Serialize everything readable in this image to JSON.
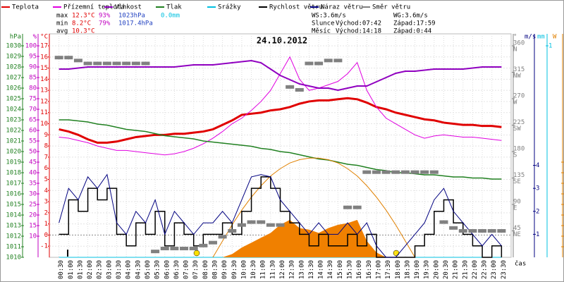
{
  "chart_data": {
    "type": "line",
    "title": "24.10.2012",
    "xlabel": "čas",
    "categories": [
      "00:30",
      "01:00",
      "01:30",
      "02:00",
      "02:30",
      "03:00",
      "03:30",
      "04:00",
      "04:30",
      "05:00",
      "05:30",
      "06:00",
      "06:30",
      "07:00",
      "07:30",
      "08:00",
      "08:30",
      "09:00",
      "09:30",
      "10:00",
      "10:30",
      "11:00",
      "11:30",
      "12:00",
      "12:30",
      "13:00",
      "13:30",
      "14:00",
      "14:30",
      "15:00",
      "15:30",
      "16:00",
      "16:30",
      "17:00",
      "17:30",
      "18:00",
      "18:30",
      "19:00",
      "19:30",
      "20:00",
      "20:30",
      "21:00",
      "21:30",
      "22:00",
      "22:30",
      "23:00",
      "23:30"
    ],
    "axes": {
      "pressure": {
        "unit": "hPa",
        "color": "#208020",
        "side": "left",
        "pos": 30,
        "lim": [
          1010,
          1030
        ],
        "ticks": [
          1010,
          1011,
          1012,
          1013,
          1014,
          1015,
          1016,
          1017,
          1018,
          1019,
          1020,
          1021,
          1022,
          1023,
          1024,
          1025,
          1026,
          1027,
          1028,
          1029,
          1030
        ]
      },
      "humidity": {
        "unit": "%",
        "color": "#c000c0",
        "side": "left",
        "pos": 52,
        "lim": [
          0,
          100
        ],
        "ticks": [
          10,
          15,
          20,
          25,
          30,
          35,
          40,
          45,
          50,
          55,
          60,
          65,
          70,
          75,
          80,
          85,
          90,
          95,
          100
        ]
      },
      "temp": {
        "unit": "°C",
        "color": "#e00000",
        "side": "left",
        "pos": 68,
        "lim": [
          -2,
          17
        ],
        "ticks": [
          -1,
          0,
          1,
          2,
          3,
          4,
          5,
          6,
          7,
          8,
          9,
          10,
          11,
          12,
          13,
          14,
          15,
          16,
          17
        ],
        "grid": true
      },
      "direction": {
        "unit": "°",
        "color": "#808080",
        "side": "right",
        "pos": 728,
        "lim": [
          0,
          360
        ],
        "ticks": [
          45,
          90,
          135,
          180,
          225,
          270,
          315,
          360
        ],
        "compass": [
          "NE",
          "E",
          "SE",
          "S",
          "SW",
          "W",
          "NW",
          "N"
        ]
      },
      "wind": {
        "unit": "m/s",
        "color": "#000080",
        "side": "right",
        "pos": 744,
        "lim": [
          0,
          9.2
        ],
        "ticks": [
          1,
          2,
          3,
          4
        ]
      },
      "rain": {
        "unit": "mm",
        "color": "#00c0e0",
        "side": "right",
        "pos": 762,
        "lim": [
          0,
          1
        ],
        "ticks": [
          1
        ]
      },
      "solar": {
        "unit": "W",
        "color": "#e08000",
        "side": "right",
        "pos": 784,
        "lim": [
          0,
          1300
        ],
        "ticks": [
          65,
          130,
          195,
          260,
          325,
          390,
          455,
          520,
          585
        ]
      }
    },
    "series": [
      {
        "name": "Teplota",
        "color": "#e00000",
        "axis": "temp",
        "style": "line",
        "width": 3,
        "values": [
          9.5,
          9.3,
          9.0,
          8.6,
          8.3,
          8.3,
          8.4,
          8.6,
          8.8,
          8.9,
          9.0,
          9.0,
          9.1,
          9.1,
          9.2,
          9.3,
          9.5,
          9.9,
          10.3,
          10.8,
          10.9,
          11.0,
          11.2,
          11.3,
          11.5,
          11.8,
          12.0,
          12.1,
          12.1,
          12.2,
          12.3,
          12.2,
          11.9,
          11.5,
          11.3,
          11.0,
          10.8,
          10.6,
          10.4,
          10.3,
          10.1,
          10.0,
          9.9,
          9.9,
          9.8,
          9.8,
          9.7
        ]
      },
      {
        "name": "Přízemní teplota",
        "color": "#e000e0",
        "axis": "temp",
        "style": "line",
        "width": 1,
        "values": [
          8.8,
          8.7,
          8.5,
          8.3,
          8.0,
          7.8,
          7.6,
          7.6,
          7.5,
          7.4,
          7.3,
          7.2,
          7.3,
          7.5,
          7.8,
          8.2,
          8.7,
          9.3,
          10.0,
          10.5,
          11.2,
          12.0,
          13.0,
          14.5,
          16.0,
          14.0,
          13.0,
          13.2,
          13.5,
          13.8,
          14.5,
          15.5,
          13.0,
          11.5,
          10.5,
          10.0,
          9.5,
          9.0,
          8.7,
          8.9,
          9.0,
          8.9,
          8.8,
          8.8,
          8.7,
          8.6,
          8.5
        ]
      },
      {
        "name": "Vlhkost",
        "color": "#9000c0",
        "axis": "humidity",
        "style": "line",
        "width": 2,
        "values": [
          89,
          89,
          89.5,
          90,
          90,
          90,
          90,
          90,
          90,
          90,
          90,
          90,
          90,
          90.5,
          91,
          91,
          91,
          91.5,
          92,
          92.5,
          93,
          92,
          89,
          86,
          84,
          82,
          81,
          80,
          80,
          79,
          80,
          81,
          81,
          83,
          85,
          87,
          88,
          88,
          88.5,
          89,
          89,
          89,
          89,
          89.5,
          90,
          90,
          90
        ]
      },
      {
        "name": "Tlak",
        "color": "#208020",
        "axis": "pressure",
        "style": "line",
        "width": 1.5,
        "values": [
          1023,
          1023,
          1022.9,
          1022.8,
          1022.6,
          1022.5,
          1022.3,
          1022.1,
          1022,
          1021.9,
          1021.7,
          1021.5,
          1021.4,
          1021.3,
          1021.2,
          1021,
          1020.9,
          1020.8,
          1020.7,
          1020.6,
          1020.5,
          1020.3,
          1020.2,
          1020,
          1019.9,
          1019.7,
          1019.5,
          1019.3,
          1019.2,
          1019,
          1018.8,
          1018.7,
          1018.5,
          1018.3,
          1018.2,
          1018,
          1018,
          1017.9,
          1017.8,
          1017.8,
          1017.7,
          1017.6,
          1017.6,
          1017.5,
          1017.5,
          1017.4,
          1017.4
        ]
      },
      {
        "name": "Srážky",
        "color": "#00c0e0",
        "axis": "rain",
        "style": "line",
        "width": 1,
        "values": [
          0,
          0,
          0,
          0,
          0,
          0,
          0,
          0,
          0,
          0,
          0,
          0,
          0,
          0,
          0,
          0,
          0,
          0,
          0,
          0,
          0,
          0,
          0,
          0,
          0,
          0,
          0,
          0,
          0,
          0,
          0,
          0,
          0,
          0,
          0,
          0,
          0,
          0,
          0,
          0,
          0,
          0,
          0,
          0,
          0,
          0,
          0
        ]
      },
      {
        "color": "#f08000",
        "axis": "solar",
        "style": "area",
        "width": 0,
        "values": [
          0,
          0,
          0,
          0,
          0,
          0,
          0,
          0,
          0,
          0,
          0,
          0,
          0,
          0,
          0,
          0,
          0,
          0,
          20,
          60,
          90,
          120,
          150,
          200,
          230,
          180,
          170,
          150,
          180,
          200,
          210,
          230,
          100,
          30,
          0,
          0,
          0,
          0,
          0,
          0,
          0,
          0,
          0,
          0,
          0,
          0,
          0
        ]
      },
      {
        "color": "#e08000",
        "axis": "solar",
        "style": "line",
        "width": 1,
        "values": [
          null,
          null,
          null,
          null,
          null,
          null,
          null,
          null,
          null,
          null,
          null,
          null,
          null,
          null,
          null,
          null,
          0,
          100,
          200,
          290,
          370,
          440,
          500,
          545,
          580,
          600,
          610,
          610,
          600,
          580,
          545,
          500,
          440,
          370,
          290,
          200,
          100,
          0,
          null,
          null,
          null,
          null,
          null,
          null,
          null,
          null,
          null
        ]
      },
      {
        "name": "Rychlost větru",
        "color": "#000000",
        "axis": "wind",
        "style": "step",
        "width": 1.5,
        "values": [
          1,
          2.5,
          2,
          3,
          2.5,
          3,
          1,
          0.5,
          1.5,
          1,
          2,
          0.5,
          1.5,
          1,
          0.5,
          1,
          1,
          1.5,
          1,
          2,
          3,
          3.5,
          3,
          2,
          1.5,
          1,
          0.5,
          1,
          0.5,
          0.5,
          1,
          0.5,
          1,
          0,
          0,
          0,
          0,
          0.5,
          1,
          2,
          2.5,
          1.5,
          1,
          0.5,
          0,
          0.5,
          0
        ]
      },
      {
        "name": "Náraz větru",
        "color": "#000080",
        "axis": "wind",
        "style": "line",
        "width": 1,
        "values": [
          1.5,
          3,
          2.5,
          3.5,
          3,
          3.6,
          1.5,
          1,
          2,
          1.5,
          2.5,
          1,
          2,
          1.5,
          1,
          1.5,
          1.5,
          2,
          1.5,
          2.5,
          3.5,
          3.6,
          3.5,
          2.5,
          2,
          1.5,
          1,
          1.5,
          1,
          1,
          1.5,
          1,
          1.5,
          0.5,
          0,
          0,
          0.5,
          1,
          1.5,
          2.5,
          3,
          2,
          1.5,
          1,
          0.5,
          1,
          0.5
        ]
      },
      {
        "name": "Směr větru",
        "color": "#808080",
        "axis": "direction",
        "style": "points",
        "width": 0,
        "values": [
          340,
          340,
          335,
          330,
          330,
          330,
          330,
          330,
          330,
          330,
          10,
          15,
          15,
          15,
          15,
          20,
          25,
          35,
          45,
          55,
          60,
          60,
          55,
          55,
          290,
          285,
          330,
          330,
          335,
          335,
          85,
          85,
          145,
          145,
          145,
          145,
          145,
          145,
          145,
          145,
          60,
          50,
          45,
          45,
          45,
          45,
          45
        ]
      }
    ],
    "stats": [
      [
        "max",
        "12.3°C",
        "93%",
        "1023hPa",
        "0.0mm"
      ],
      [
        "min",
        "8.2°C",
        "79%",
        "1017.4hPa"
      ],
      [
        "avg",
        "10.3°C"
      ]
    ],
    "info": [
      [
        "WS:3.6m/s",
        "",
        "WG:3.6m/s"
      ],
      [
        "Slunce",
        "Východ:07:42",
        "Západ:17:59"
      ],
      [
        "Měsíc",
        "Východ:14:18",
        "Západ:0:44"
      ]
    ]
  }
}
